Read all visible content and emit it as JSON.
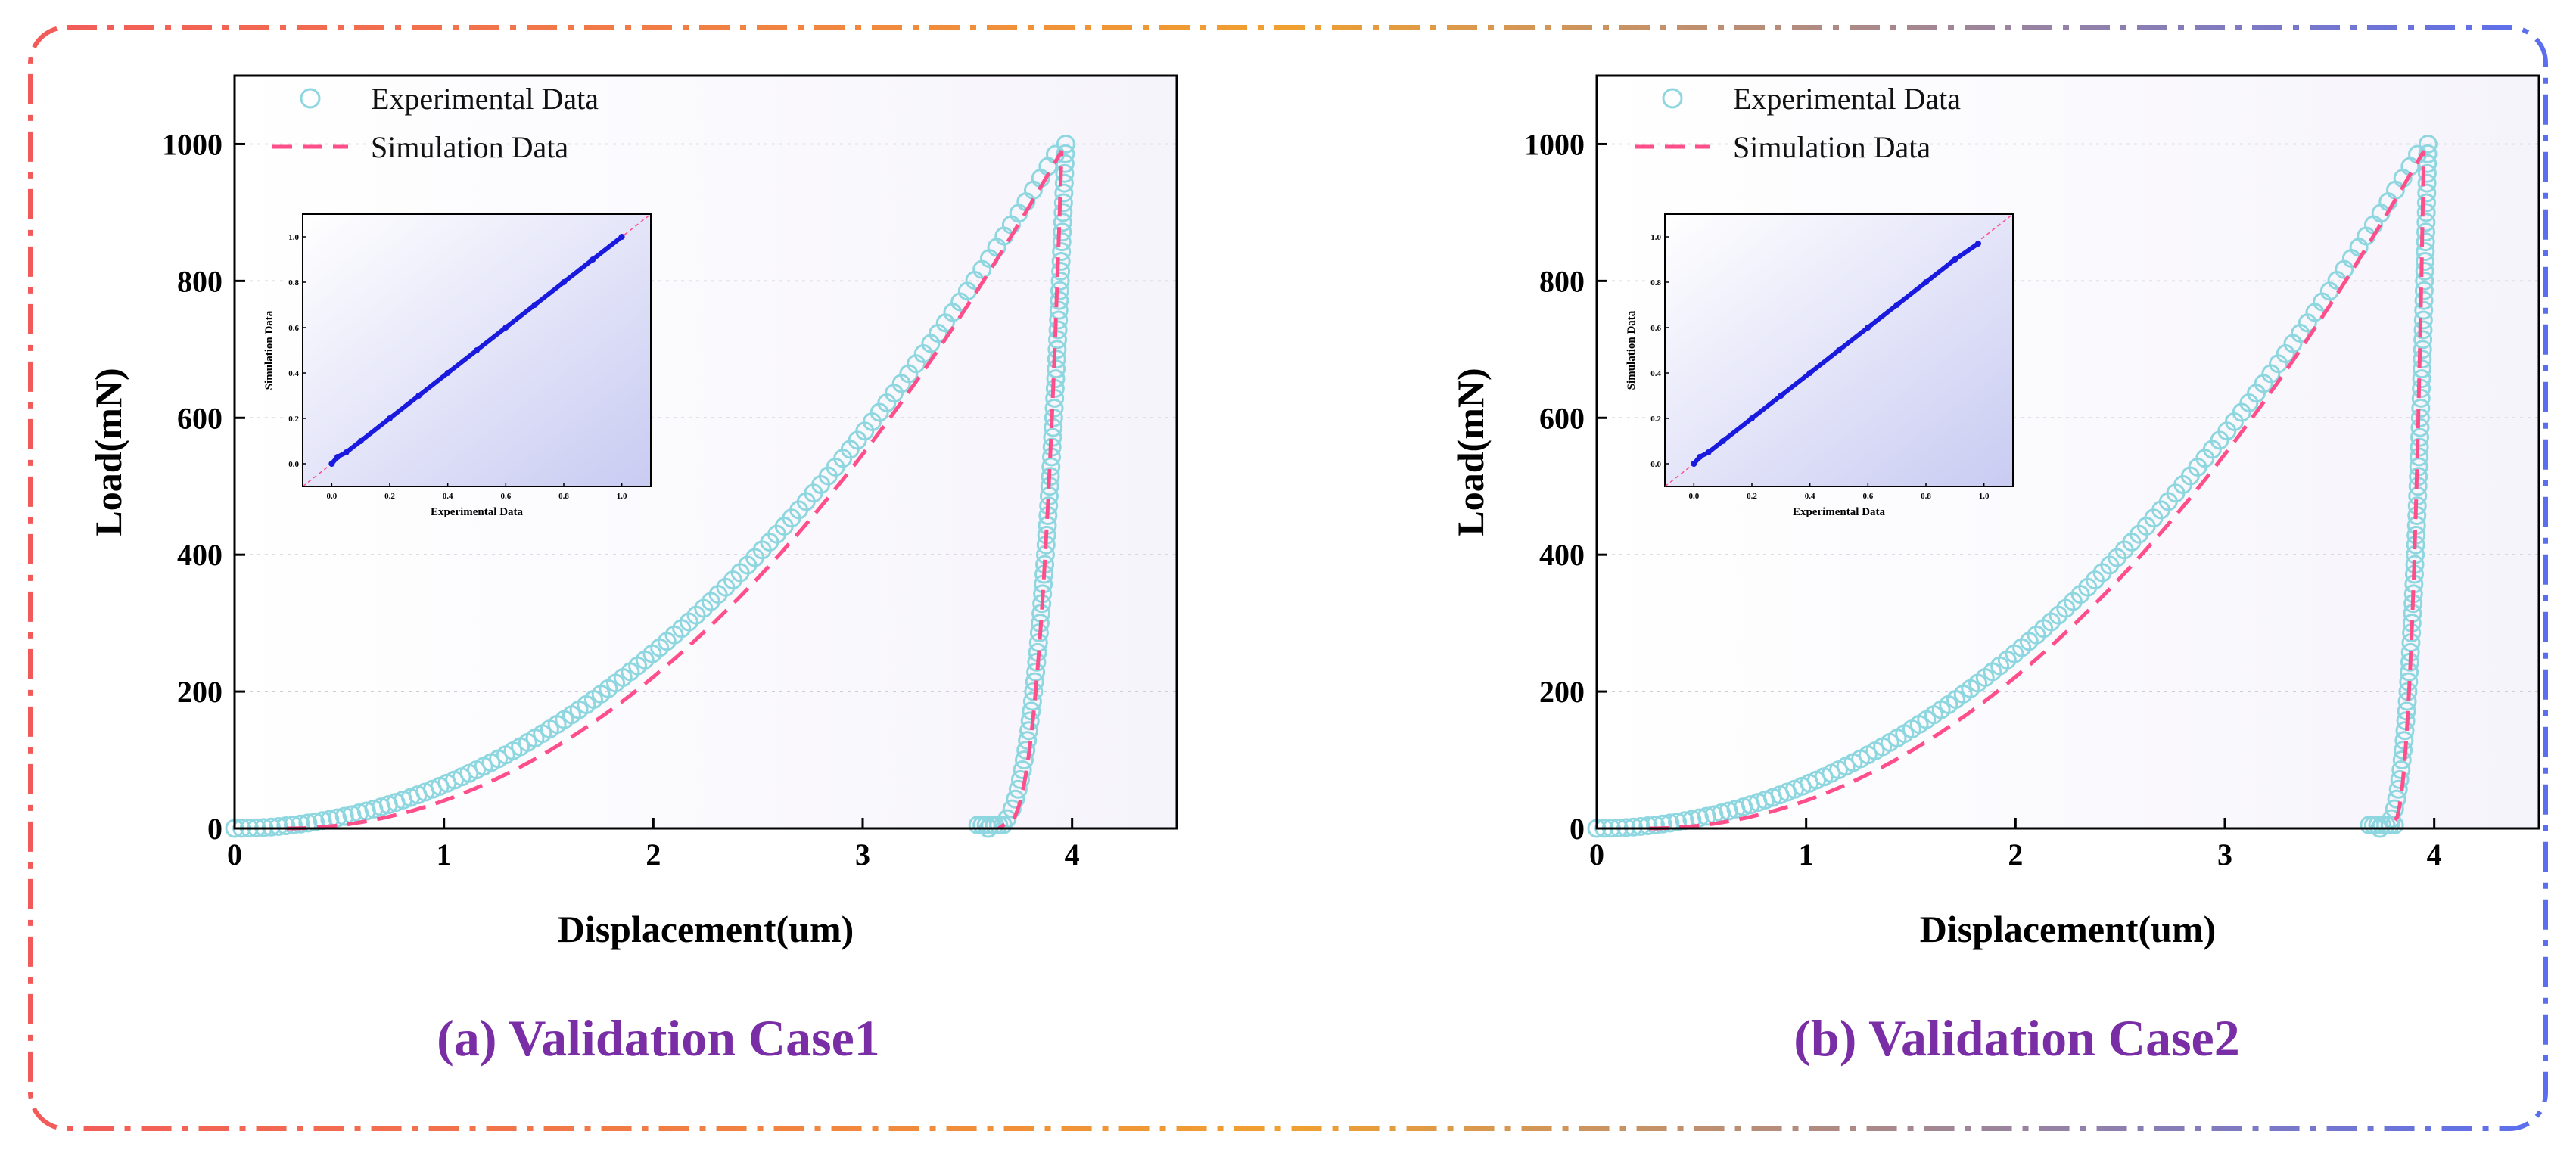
{
  "figure": {
    "frame_colors": {
      "left": "#f25a5a",
      "middle": "#f0a030",
      "right": "#5a6ef0"
    },
    "marker_color": "#8fd7e0",
    "sim_color": "#ff4f8b",
    "inset_color": "#1a1adf"
  },
  "chart_data": [
    {
      "type": "line",
      "caption": "(a) Validation Case1",
      "xlabel": "Displacement(um)",
      "ylabel": "Load(mN)",
      "xlim": [
        0,
        4.5
      ],
      "ylim": [
        0,
        1100
      ],
      "xticks": [
        0,
        1,
        2,
        3,
        4
      ],
      "yticks": [
        0,
        200,
        400,
        600,
        800,
        1000
      ],
      "legend": {
        "position": "top-left",
        "entries": [
          "Experimental Data",
          "Simulation Data"
        ]
      },
      "series": [
        {
          "name": "Experimental Data",
          "style": "open-circle",
          "loading": {
            "x0": 0.0,
            "x_peak": 3.95,
            "y_peak": 1000,
            "exponent": 2.0
          },
          "unloading": {
            "x_final": 3.58,
            "exponent": 3.0
          }
        },
        {
          "name": "Simulation Data",
          "style": "dashed",
          "loading": {
            "x0": 0.25,
            "x_peak": 3.95,
            "y_peak": 990,
            "exponent": 2.0
          },
          "unloading": {
            "x_final": 3.65,
            "exponent": 3.0
          }
        }
      ],
      "inset": {
        "type": "scatter",
        "xlabel": "Experimental Data",
        "ylabel": "Simulation Data",
        "xlim": [
          -0.1,
          1.1
        ],
        "ylim": [
          -0.1,
          1.1
        ],
        "ticks": [
          "0.0",
          "0.2",
          "0.4",
          "0.6",
          "0.8",
          "1.0"
        ],
        "points": [
          [
            0.0,
            0.0
          ],
          [
            0.02,
            0.03
          ],
          [
            0.05,
            0.05
          ],
          [
            0.1,
            0.1
          ],
          [
            0.2,
            0.2
          ],
          [
            0.3,
            0.3
          ],
          [
            0.4,
            0.4
          ],
          [
            0.5,
            0.5
          ],
          [
            0.6,
            0.6
          ],
          [
            0.7,
            0.7
          ],
          [
            0.8,
            0.8
          ],
          [
            0.9,
            0.9
          ],
          [
            1.0,
            1.0
          ]
        ]
      }
    },
    {
      "type": "line",
      "caption": "(b) Validation Case2",
      "xlabel": "Displacement(um)",
      "ylabel": "Load(mN)",
      "xlim": [
        0,
        4.5
      ],
      "ylim": [
        0,
        1100
      ],
      "xticks": [
        0,
        1,
        2,
        3,
        4
      ],
      "yticks": [
        0,
        200,
        400,
        600,
        800,
        1000
      ],
      "legend": {
        "position": "top-left",
        "entries": [
          "Experimental Data",
          "Simulation Data"
        ]
      },
      "series": [
        {
          "name": "Experimental Data",
          "style": "open-circle",
          "loading": {
            "x0": 0.0,
            "x_peak": 3.95,
            "y_peak": 1000,
            "exponent": 2.0
          },
          "unloading": {
            "x_final": 3.72,
            "exponent": 3.0
          }
        },
        {
          "name": "Simulation Data",
          "style": "dashed",
          "loading": {
            "x0": 0.25,
            "x_peak": 3.95,
            "y_peak": 990,
            "exponent": 2.0
          },
          "unloading": {
            "x_final": 3.78,
            "exponent": 3.0
          }
        }
      ],
      "inset": {
        "type": "scatter",
        "xlabel": "Experimental Data",
        "ylabel": "Simulation Data",
        "xlim": [
          -0.1,
          1.1
        ],
        "ylim": [
          -0.1,
          1.1
        ],
        "ticks": [
          "0.0",
          "0.2",
          "0.4",
          "0.6",
          "0.8",
          "1.0"
        ],
        "points": [
          [
            0.0,
            0.0
          ],
          [
            0.02,
            0.03
          ],
          [
            0.05,
            0.05
          ],
          [
            0.1,
            0.1
          ],
          [
            0.2,
            0.2
          ],
          [
            0.3,
            0.3
          ],
          [
            0.4,
            0.4
          ],
          [
            0.5,
            0.5
          ],
          [
            0.6,
            0.6
          ],
          [
            0.7,
            0.7
          ],
          [
            0.8,
            0.8
          ],
          [
            0.9,
            0.9
          ],
          [
            0.98,
            0.97
          ]
        ]
      }
    }
  ]
}
